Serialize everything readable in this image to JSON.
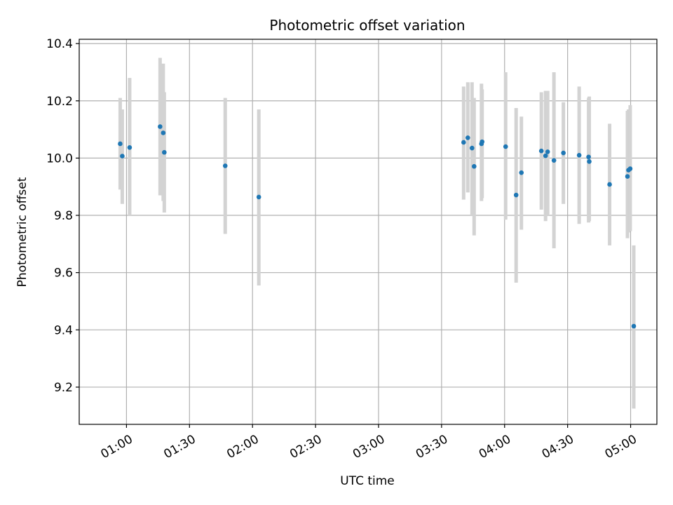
{
  "chart_data": {
    "type": "scatter",
    "title": "Photometric offset variation",
    "xlabel": "UTC time",
    "ylabel": "Photometric offset",
    "grid": true,
    "x_unit": "minutes_since_midnight_utc",
    "xlim": [
      37.5,
      312.5
    ],
    "ylim": [
      9.07,
      10.415
    ],
    "x_ticks": [
      {
        "value": 60,
        "label": "01:00"
      },
      {
        "value": 90,
        "label": "01:30"
      },
      {
        "value": 120,
        "label": "02:00"
      },
      {
        "value": 150,
        "label": "02:30"
      },
      {
        "value": 180,
        "label": "03:00"
      },
      {
        "value": 210,
        "label": "03:30"
      },
      {
        "value": 240,
        "label": "04:00"
      },
      {
        "value": 270,
        "label": "04:30"
      },
      {
        "value": 300,
        "label": "05:00"
      }
    ],
    "y_ticks": [
      {
        "value": 9.2,
        "label": "9.2"
      },
      {
        "value": 9.4,
        "label": "9.4"
      },
      {
        "value": 9.6,
        "label": "9.6"
      },
      {
        "value": 9.8,
        "label": "9.8"
      },
      {
        "value": 10.0,
        "label": "10.0"
      },
      {
        "value": 10.2,
        "label": "10.2"
      },
      {
        "value": 10.4,
        "label": "10.4"
      }
    ],
    "marker_color": "#1f77b4",
    "errorbar_color": "#d3d3d3",
    "points": [
      {
        "x": 57.0,
        "y": 10.05,
        "err_low": 9.89,
        "err_high": 10.21
      },
      {
        "x": 58.0,
        "y": 10.007,
        "err_low": 9.84,
        "err_high": 10.17
      },
      {
        "x": 61.5,
        "y": 10.037,
        "err_low": 9.8,
        "err_high": 10.28
      },
      {
        "x": 76.0,
        "y": 10.11,
        "err_low": 9.87,
        "err_high": 10.35
      },
      {
        "x": 77.5,
        "y": 10.088,
        "err_low": 9.85,
        "err_high": 10.33
      },
      {
        "x": 78.0,
        "y": 10.02,
        "err_low": 9.81,
        "err_high": 10.23
      },
      {
        "x": 107.0,
        "y": 9.973,
        "err_low": 9.735,
        "err_high": 10.21
      },
      {
        "x": 123.0,
        "y": 9.864,
        "err_low": 9.555,
        "err_high": 10.17
      },
      {
        "x": 220.5,
        "y": 10.055,
        "err_low": 9.855,
        "err_high": 10.25
      },
      {
        "x": 222.5,
        "y": 10.071,
        "err_low": 9.88,
        "err_high": 10.265
      },
      {
        "x": 224.5,
        "y": 10.035,
        "err_low": 9.8,
        "err_high": 10.265
      },
      {
        "x": 225.5,
        "y": 9.971,
        "err_low": 9.73,
        "err_high": 10.21
      },
      {
        "x": 229.0,
        "y": 10.05,
        "err_low": 9.85,
        "err_high": 10.26
      },
      {
        "x": 229.3,
        "y": 10.057,
        "err_low": 9.86,
        "err_high": 10.24
      },
      {
        "x": 240.5,
        "y": 10.04,
        "err_low": 9.785,
        "err_high": 10.3
      },
      {
        "x": 245.5,
        "y": 9.871,
        "err_low": 9.565,
        "err_high": 10.175
      },
      {
        "x": 248.0,
        "y": 9.949,
        "err_low": 9.75,
        "err_high": 10.145
      },
      {
        "x": 257.5,
        "y": 10.025,
        "err_low": 9.82,
        "err_high": 10.23
      },
      {
        "x": 259.5,
        "y": 10.008,
        "err_low": 9.78,
        "err_high": 10.235
      },
      {
        "x": 260.5,
        "y": 10.022,
        "err_low": 9.8,
        "err_high": 10.235
      },
      {
        "x": 263.5,
        "y": 9.992,
        "err_low": 9.685,
        "err_high": 10.3
      },
      {
        "x": 268.0,
        "y": 10.018,
        "err_low": 9.84,
        "err_high": 10.195
      },
      {
        "x": 275.5,
        "y": 10.01,
        "err_low": 9.77,
        "err_high": 10.25
      },
      {
        "x": 280.0,
        "y": 10.004,
        "err_low": 9.775,
        "err_high": 10.21
      },
      {
        "x": 280.3,
        "y": 9.988,
        "err_low": 9.78,
        "err_high": 10.215
      },
      {
        "x": 290.0,
        "y": 9.908,
        "err_low": 9.695,
        "err_high": 10.12
      },
      {
        "x": 298.5,
        "y": 9.936,
        "err_low": 9.72,
        "err_high": 10.165
      },
      {
        "x": 299.0,
        "y": 9.958,
        "err_low": 9.74,
        "err_high": 10.17
      },
      {
        "x": 299.8,
        "y": 9.963,
        "err_low": 9.745,
        "err_high": 10.185
      },
      {
        "x": 301.5,
        "y": 9.413,
        "err_low": 9.125,
        "err_high": 9.695
      }
    ]
  }
}
